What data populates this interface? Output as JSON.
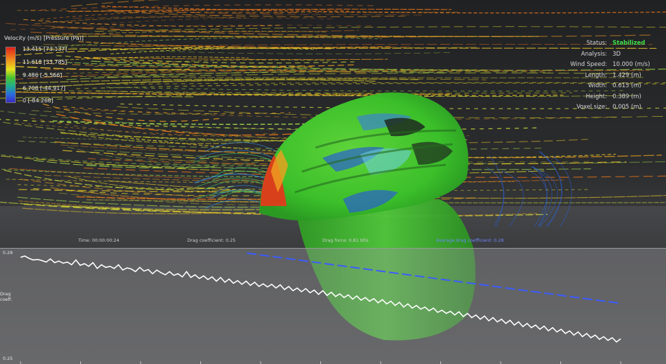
{
  "legend": {
    "title": "Velocity (m/s) [Pressure (Pa)]",
    "ticks": [
      "13.415 [73.137]",
      "11.618 [33.785]",
      "9.486 [-5.566]",
      "6.708 [-44.917]",
      "0 [-84.268]"
    ]
  },
  "status": [
    {
      "label": "Status:",
      "value": "Stabilized"
    },
    {
      "label": "Analysis:",
      "value": "3D"
    },
    {
      "label": "Wind Speed:",
      "value": "10.000 (m/s)"
    },
    {
      "label": "Length:",
      "value": "1.429 (m)"
    },
    {
      "label": "Width:",
      "value": "0.615 (m)"
    },
    {
      "label": "Height:",
      "value": "0.389 (m)"
    },
    {
      "label": "Voxel size:",
      "value": "0.005 (m)"
    }
  ],
  "hud": {
    "time": "Time: 00:00:00:24",
    "drag_coefficient": "Drag coefficient: 0.25",
    "drag_force": "Drag force: 0.81 bf/s",
    "avg_drag": "Average drag coefficient: 0.28"
  },
  "chart": {
    "y_axis_label": [
      "Drag",
      "coeff."
    ],
    "y_top_label": "0.29",
    "y_bottom_label": "0.25"
  },
  "colors": {
    "series_current": "#ffffff",
    "series_average": "#3b5cff",
    "helmet": "#3fbf2a"
  },
  "icons": [
    "helmet-model",
    "streamlines"
  ],
  "chart_data": {
    "type": "line",
    "ylim": [
      0.25,
      0.29
    ],
    "series": [
      {
        "values": [
          0.288,
          0.2885,
          0.2876,
          0.287,
          0.2872,
          0.2868,
          0.2862,
          0.2874,
          0.286,
          0.2866,
          0.2858,
          0.2862,
          0.2852,
          0.287,
          0.285,
          0.2856,
          0.2846,
          0.286,
          0.2838,
          0.2852,
          0.2842,
          0.2846,
          0.2838,
          0.2852,
          0.2832,
          0.284,
          0.2836,
          0.2826,
          0.2842,
          0.2828,
          0.2834,
          0.2818,
          0.2832,
          0.2822,
          0.2814,
          0.2826,
          0.2812,
          0.2818,
          0.2806,
          0.2826,
          0.2804,
          0.2814,
          0.28,
          0.281,
          0.2796,
          0.2806,
          0.279,
          0.2804,
          0.2786,
          0.2798,
          0.2782,
          0.2792,
          0.2778,
          0.279,
          0.2774,
          0.2786,
          0.277,
          0.278,
          0.2768,
          0.2778,
          0.2764,
          0.2776,
          0.2758,
          0.277,
          0.2754,
          0.2764,
          0.275,
          0.2762,
          0.2746,
          0.2756,
          0.274,
          0.2754,
          0.2736,
          0.2748,
          0.2732,
          0.2742,
          0.2728,
          0.2738,
          0.2722,
          0.2734,
          0.2718,
          0.2728,
          0.2714,
          0.2724,
          0.2708,
          0.272,
          0.2704,
          0.2714,
          0.2698,
          0.271,
          0.2692,
          0.2704,
          0.2688,
          0.2698,
          0.2684,
          0.2692,
          0.2678,
          0.2688,
          0.2672,
          0.268,
          0.2668,
          0.2676,
          0.2662,
          0.2674,
          0.2656,
          0.2668,
          0.2652,
          0.2662,
          0.2646,
          0.2658,
          0.264,
          0.2652,
          0.2636,
          0.2646,
          0.263,
          0.2642,
          0.2624,
          0.2636,
          0.2618,
          0.263,
          0.2614,
          0.2624,
          0.2608,
          0.262,
          0.2602,
          0.2614,
          0.2598,
          0.2608,
          0.2592,
          0.2602,
          0.2586,
          0.2598,
          0.258,
          0.2592,
          0.2576,
          0.2586,
          0.257,
          0.258,
          0.2566,
          0.2576,
          0.256,
          0.2572
        ]
      },
      {
        "values": [
          0.287,
          0.286,
          0.285,
          0.284,
          0.283,
          0.282,
          0.281,
          0.28,
          0.279,
          0.278,
          0.277,
          0.276,
          0.275,
          0.274,
          0.273,
          0.272,
          0.271,
          0.27,
          0.269,
          0.268
        ]
      }
    ]
  }
}
